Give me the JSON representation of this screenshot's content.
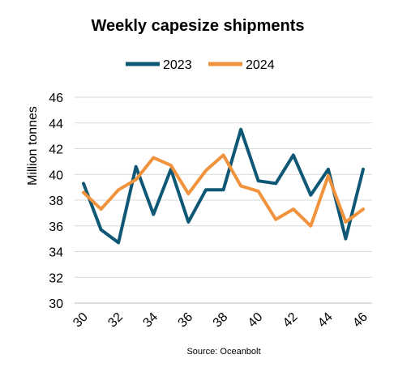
{
  "chart_data": {
    "type": "line",
    "title": "Weekly capesize shipments",
    "ylabel": "Million tonnes",
    "xlabel": "",
    "source": "Source: Oceanbolt",
    "x": [
      30,
      31,
      32,
      33,
      34,
      35,
      36,
      37,
      38,
      39,
      40,
      41,
      42,
      43,
      44,
      45,
      46
    ],
    "x_ticks": [
      "30",
      "32",
      "34",
      "36",
      "38",
      "40",
      "42",
      "44",
      "46"
    ],
    "y_ticks": [
      "30",
      "32",
      "34",
      "36",
      "38",
      "40",
      "42",
      "44",
      "46"
    ],
    "ylim": [
      30,
      46
    ],
    "xlim": [
      30,
      46
    ],
    "grid": "horizontal",
    "legend_position": "top",
    "series": [
      {
        "name": "2023",
        "color": "#0f5875",
        "values": [
          39.3,
          35.7,
          34.7,
          40.6,
          36.9,
          40.4,
          36.3,
          38.8,
          38.8,
          43.5,
          39.5,
          39.3,
          41.5,
          38.4,
          40.4,
          35.0,
          40.4
        ]
      },
      {
        "name": "2024",
        "color": "#f0933c",
        "values": [
          38.6,
          37.3,
          38.8,
          39.6,
          41.3,
          40.7,
          38.5,
          40.3,
          41.5,
          39.1,
          38.7,
          36.5,
          37.3,
          36.0,
          39.9,
          36.3,
          37.3
        ]
      }
    ]
  }
}
